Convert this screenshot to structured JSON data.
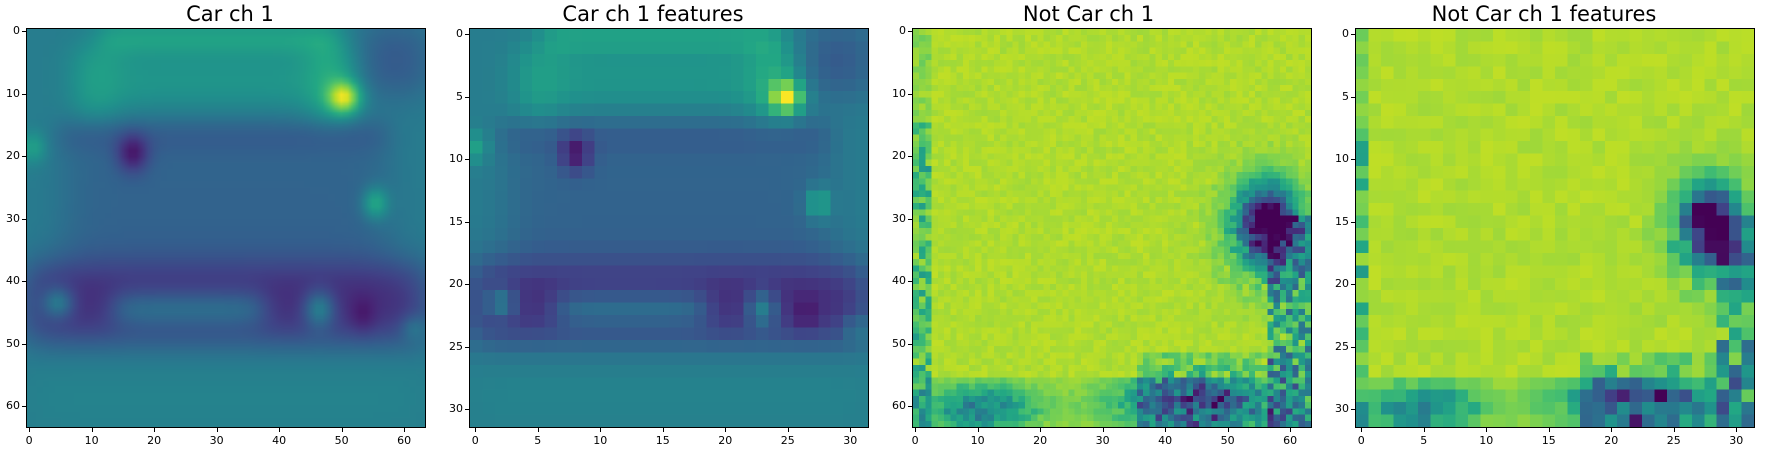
{
  "panels": [
    {
      "title": "Car ch 1",
      "kind": "car",
      "resolution": 64,
      "xticks": [
        "0",
        "10",
        "20",
        "30",
        "40",
        "50",
        "60"
      ],
      "yticks": [
        "0",
        "10",
        "20",
        "30",
        "40",
        "50",
        "60"
      ],
      "extent": 64
    },
    {
      "title": "Car ch 1 features",
      "kind": "car",
      "resolution": 32,
      "xticks": [
        "0",
        "5",
        "10",
        "15",
        "20",
        "25",
        "30"
      ],
      "yticks": [
        "0",
        "5",
        "10",
        "15",
        "20",
        "25",
        "30"
      ],
      "extent": 32
    },
    {
      "title": "Not Car ch 1",
      "kind": "notcar",
      "resolution": 64,
      "xticks": [
        "0",
        "10",
        "20",
        "30",
        "40",
        "50",
        "60"
      ],
      "yticks": [
        "0",
        "10",
        "20",
        "30",
        "40",
        "50",
        "60"
      ],
      "extent": 64
    },
    {
      "title": "Not Car ch 1 features",
      "kind": "notcar",
      "resolution": 32,
      "xticks": [
        "0",
        "5",
        "10",
        "15",
        "20",
        "25",
        "30"
      ],
      "yticks": [
        "0",
        "5",
        "10",
        "15",
        "20",
        "25",
        "30"
      ],
      "extent": 32
    }
  ],
  "colormap": "viridis"
}
